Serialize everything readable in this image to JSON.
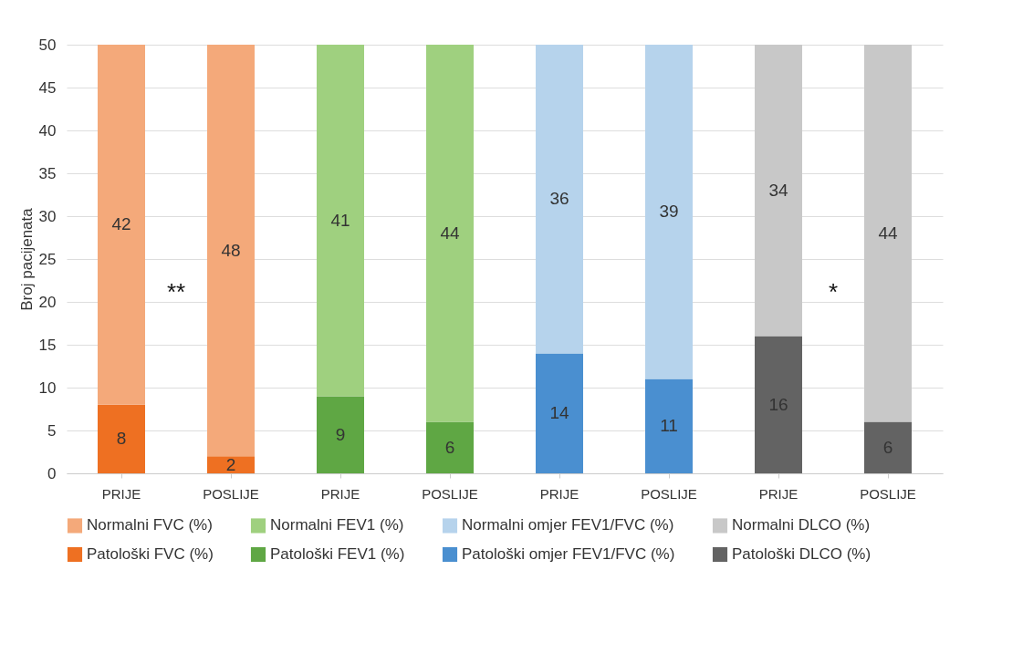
{
  "chart_data": {
    "type": "bar",
    "stacked": true,
    "ylabel": "Broj pacijenata",
    "categories": [
      "PRIJE",
      "POSLIJE",
      "PRIJE",
      "POSLIJE",
      "PRIJE",
      "POSLIJE",
      "PRIJE",
      "POSLIJE"
    ],
    "series": [
      {
        "name": "Patološki FVC (%)",
        "color": "#ee7022",
        "values": [
          8,
          2,
          null,
          null,
          null,
          null,
          null,
          null
        ]
      },
      {
        "name": "Normalni FVC (%)",
        "color": "#f4a97a",
        "values": [
          42,
          48,
          null,
          null,
          null,
          null,
          null,
          null
        ]
      },
      {
        "name": "Patološki FEV1 (%)",
        "color": "#5fa744",
        "values": [
          null,
          null,
          9,
          6,
          null,
          null,
          null,
          null
        ]
      },
      {
        "name": "Normalni FEV1 (%)",
        "color": "#9fd07f",
        "values": [
          null,
          null,
          41,
          44,
          null,
          null,
          null,
          null
        ]
      },
      {
        "name": "Patološki omjer FEV1/FVC (%)",
        "color": "#4a8fd0",
        "values": [
          null,
          null,
          null,
          null,
          14,
          11,
          null,
          null
        ]
      },
      {
        "name": "Normalni omjer FEV1/FVC (%)",
        "color": "#b6d3ec",
        "values": [
          null,
          null,
          null,
          null,
          36,
          39,
          null,
          null
        ]
      },
      {
        "name": "Patološki DLCO (%)",
        "color": "#636363",
        "values": [
          null,
          null,
          null,
          null,
          null,
          null,
          16,
          6
        ]
      },
      {
        "name": "Normalni DLCO (%)",
        "color": "#c8c8c8",
        "values": [
          null,
          null,
          null,
          null,
          null,
          null,
          34,
          44
        ]
      }
    ],
    "ylim": [
      0,
      50
    ],
    "yticks": [
      0,
      5,
      10,
      15,
      20,
      25,
      30,
      35,
      40,
      45,
      50
    ],
    "grid": "y",
    "legend": "bottom",
    "data_labels": true,
    "annotations": [
      "**",
      "*"
    ]
  }
}
